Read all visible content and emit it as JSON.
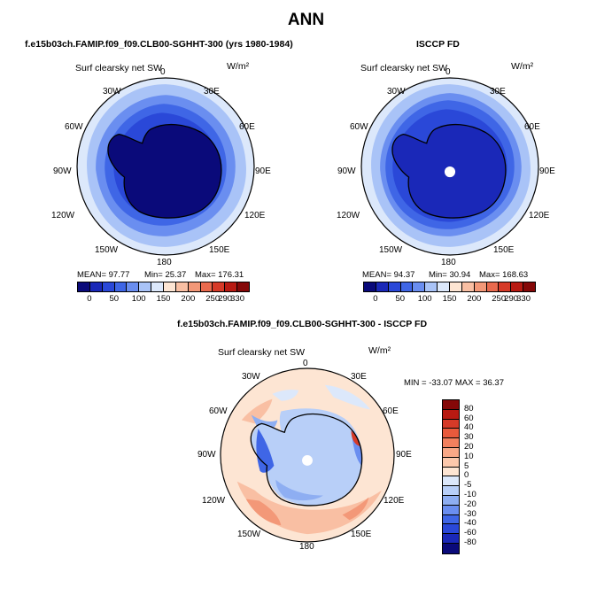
{
  "title": "ANN",
  "panel_a": {
    "title": "f.e15b03ch.FAMIP.f09_f09.CLB00-SGHHT-300 (yrs 1980-1984)",
    "label": "Surf clearsky net SW",
    "units": "W/m²",
    "mean": "MEAN=  97.77",
    "min": "Min=  25.37",
    "max": "Max= 176.31"
  },
  "panel_b": {
    "title": "ISCCP FD",
    "label": "Surf clearsky net SW",
    "units": "W/m²",
    "mean": "MEAN=  94.37",
    "min": "Min=  30.94",
    "max": "Max= 168.63"
  },
  "panel_c": {
    "title": "f.e15b03ch.FAMIP.f09_f09.CLB00-SGHHT-300 - ISCCP FD",
    "label": "Surf clearsky net SW",
    "units": "W/m²",
    "minmax": "MIN = -33.07  MAX =  36.37"
  },
  "lon_labels": {
    "n0": "0",
    "e30": "30E",
    "e60": "60E",
    "e90": "90E",
    "e120": "120E",
    "e150": "150E",
    "s180": "180",
    "w150": "150W",
    "w120": "120W",
    "w90": "90W",
    "w60": "60W",
    "w30": "30W"
  },
  "colorbar_abs": {
    "colors": [
      "#0a0a7a",
      "#1a28b8",
      "#2a48d8",
      "#3f66e6",
      "#6a8ef0",
      "#a9c3f7",
      "#dce8fb",
      "#fde5d3",
      "#f9bfa3",
      "#f39878",
      "#e96a4e",
      "#d63a28",
      "#b81a12",
      "#850808"
    ],
    "tick_labels": [
      "0",
      "50",
      "100",
      "150",
      "200",
      "250",
      "290",
      "330"
    ]
  },
  "colorbar_diff": {
    "colors": [
      "#850808",
      "#b81a12",
      "#d63a28",
      "#e95a3c",
      "#f3805e",
      "#f9a887",
      "#fcc8ac",
      "#fde5d3",
      "#dce8fb",
      "#b8cff8",
      "#8eaef2",
      "#6a8ef0",
      "#3f66e6",
      "#2a48d8",
      "#1a28b8",
      "#0a0a7a"
    ],
    "tick_labels": [
      "80",
      "60",
      "40",
      "30",
      "20",
      "10",
      "5",
      "0",
      "-5",
      "-10",
      "-20",
      "-30",
      "-40",
      "-60",
      "-80"
    ]
  }
}
